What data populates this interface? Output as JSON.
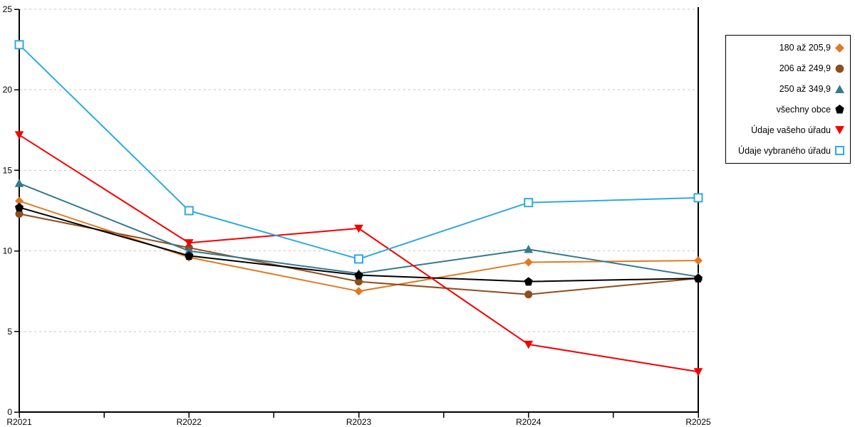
{
  "chart_data": {
    "type": "line",
    "title": "",
    "xlabel": "",
    "ylabel": "",
    "categories": [
      "R2021",
      "R2022",
      "R2023",
      "R2024",
      "R2025"
    ],
    "series": [
      {
        "name": "180 až 205,9",
        "marker": "diamond",
        "color": "#DF7A21",
        "values": [
          13.1,
          9.6,
          7.5,
          9.3,
          9.4
        ]
      },
      {
        "name": "206 až 249,9",
        "marker": "circle",
        "color": "#8E4D1C",
        "values": [
          12.3,
          10.2,
          8.1,
          7.3,
          8.3
        ]
      },
      {
        "name": "250 až 349,9",
        "marker": "triangle-up",
        "color": "#35798F",
        "values": [
          14.2,
          10.0,
          8.6,
          10.1,
          8.4
        ]
      },
      {
        "name": "všechny obce",
        "marker": "pentagon",
        "color": "#000000",
        "values": [
          12.7,
          9.7,
          8.5,
          8.1,
          8.3
        ]
      },
      {
        "name": "Údaje vašeho úřadu",
        "marker": "triangle-down",
        "color": "#F40000",
        "values": [
          17.2,
          10.5,
          11.4,
          4.2,
          2.5
        ]
      },
      {
        "name": "Údaje vybraného úřadu",
        "marker": "square-open",
        "color": "#2FAADF",
        "values": [
          22.8,
          12.5,
          9.5,
          13.0,
          13.3
        ]
      }
    ],
    "ylim": [
      0,
      25
    ],
    "y_ticks": [
      0,
      5,
      10,
      15,
      20,
      25
    ],
    "grid": "horizontal-dashed",
    "gridline_color": "#C6C6C6",
    "axis_color": "#000000",
    "background": "#FFFFFF",
    "legend_position": "right"
  }
}
